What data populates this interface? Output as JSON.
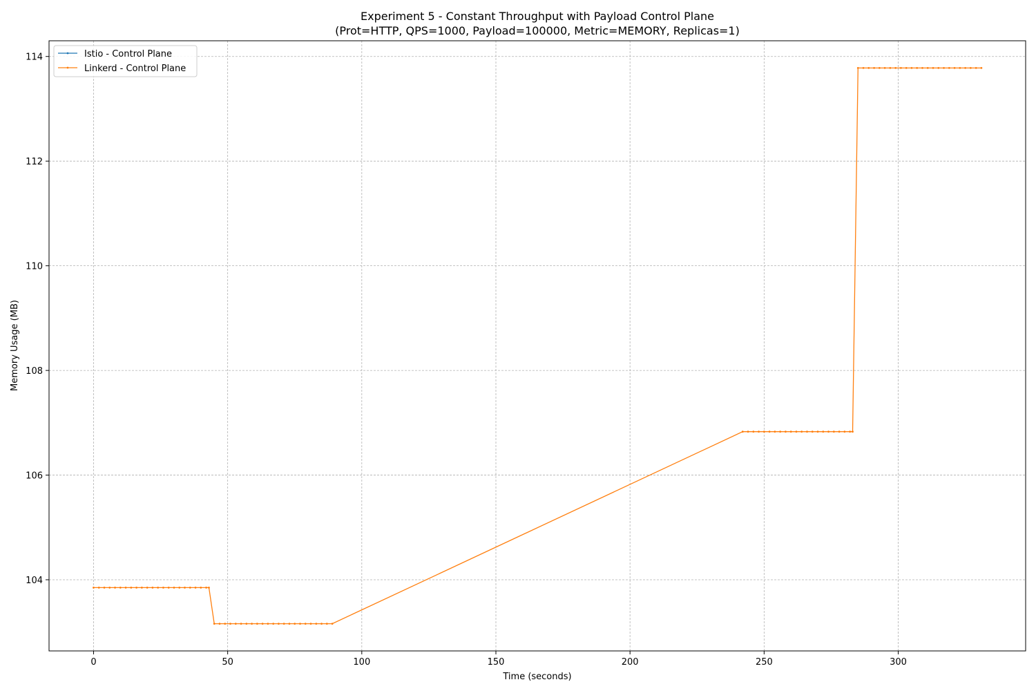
{
  "chart_data": {
    "type": "line",
    "title": "Experiment 5 - Constant Throughput with Payload Control Plane",
    "subtitle": "(Prot=HTTP, QPS=1000, Payload=100000, Metric=MEMORY, Replicas=1)",
    "xlabel": "Time (seconds)",
    "ylabel": "Memory Usage (MB)",
    "xlim": [
      -16.6,
      347.5
    ],
    "ylim": [
      102.64,
      114.3
    ],
    "x_ticks": [
      0,
      50,
      100,
      150,
      200,
      250,
      300
    ],
    "y_ticks": [
      104,
      106,
      108,
      110,
      112,
      114
    ],
    "grid": true,
    "legend_position": "top-left",
    "series": [
      {
        "name": "Istio - Control Plane",
        "color": "#1f77b4",
        "x": [],
        "y": []
      },
      {
        "name": "Linkerd - Control Plane",
        "color": "#ff7f0e",
        "x": [
          0,
          2,
          4,
          6,
          8,
          10,
          12,
          14,
          16,
          18,
          20,
          22,
          24,
          26,
          28,
          30,
          32,
          34,
          36,
          38,
          40,
          42,
          43,
          45,
          47,
          49,
          51,
          53,
          55,
          57,
          59,
          61,
          63,
          65,
          67,
          69,
          71,
          73,
          75,
          77,
          79,
          81,
          83,
          85,
          87,
          89,
          242,
          244,
          246,
          248,
          250,
          252,
          254,
          256,
          258,
          260,
          262,
          264,
          266,
          268,
          270,
          272,
          274,
          276,
          278,
          280,
          282,
          283,
          285,
          287,
          289,
          291,
          293,
          295,
          297,
          299,
          301,
          303,
          305,
          307,
          309,
          311,
          313,
          315,
          317,
          319,
          321,
          323,
          325,
          327,
          329,
          331
        ],
        "y": [
          103.85,
          103.85,
          103.85,
          103.85,
          103.85,
          103.85,
          103.85,
          103.85,
          103.85,
          103.85,
          103.85,
          103.85,
          103.85,
          103.85,
          103.85,
          103.85,
          103.85,
          103.85,
          103.85,
          103.85,
          103.85,
          103.85,
          103.85,
          103.16,
          103.16,
          103.16,
          103.16,
          103.16,
          103.16,
          103.16,
          103.16,
          103.16,
          103.16,
          103.16,
          103.16,
          103.16,
          103.16,
          103.16,
          103.16,
          103.16,
          103.16,
          103.16,
          103.16,
          103.16,
          103.16,
          103.16,
          106.83,
          106.83,
          106.83,
          106.83,
          106.83,
          106.83,
          106.83,
          106.83,
          106.83,
          106.83,
          106.83,
          106.83,
          106.83,
          106.83,
          106.83,
          106.83,
          106.83,
          106.83,
          106.83,
          106.83,
          106.83,
          106.83,
          113.78,
          113.78,
          113.78,
          113.78,
          113.78,
          113.78,
          113.78,
          113.78,
          113.78,
          113.78,
          113.78,
          113.78,
          113.78,
          113.78,
          113.78,
          113.78,
          113.78,
          113.78,
          113.78,
          113.78,
          113.78,
          113.78,
          113.78,
          113.78
        ]
      }
    ]
  }
}
